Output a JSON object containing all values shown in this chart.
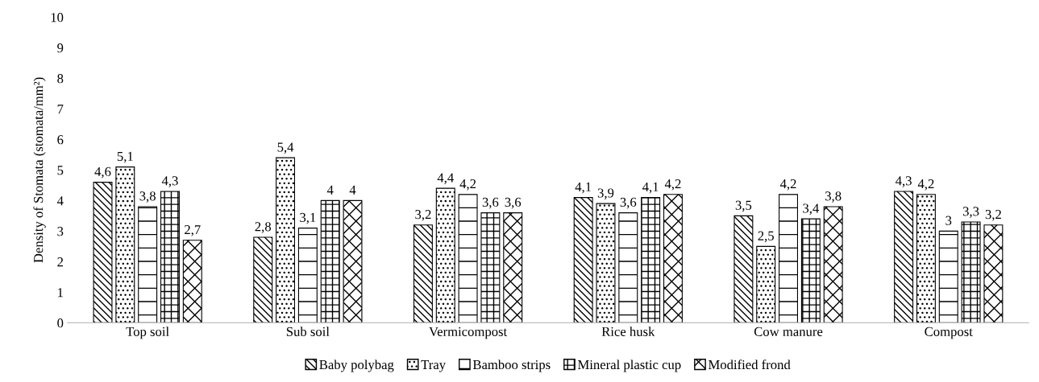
{
  "chart_data": {
    "type": "bar",
    "ylabel": "Density of Stomata (stomata/mm²)",
    "categories": [
      "Top soil",
      "Sub soil",
      "Vermicompost",
      "Rice husk",
      "Cow manure",
      "Compost"
    ],
    "series": [
      {
        "name": "Baby polybag",
        "color": "#000000",
        "values": [
          4.6,
          2.8,
          3.2,
          4.1,
          3.5,
          4.3
        ],
        "value_labels": [
          "4,6",
          "2,8",
          "3,2",
          "4,1",
          "3,5",
          "4,3"
        ]
      },
      {
        "name": "Tray",
        "color": "#000000",
        "values": [
          5.1,
          5.4,
          4.4,
          3.9,
          2.5,
          4.2
        ],
        "value_labels": [
          "5,1",
          "5,4",
          "4,4",
          "3,9",
          "2,5",
          "4,2"
        ]
      },
      {
        "name": "Bamboo strips",
        "color": "#000000",
        "values": [
          3.8,
          3.1,
          4.2,
          3.6,
          4.2,
          3.0
        ],
        "value_labels": [
          "3,8",
          "3,1",
          "4,2",
          "3,6",
          "4,2",
          "3"
        ]
      },
      {
        "name": "Mineral plastic cup",
        "color": "#000000",
        "values": [
          4.3,
          4.0,
          3.6,
          4.1,
          3.4,
          3.3
        ],
        "value_labels": [
          "4,3",
          "4",
          "3,6",
          "4,1",
          "3,4",
          "3,3"
        ]
      },
      {
        "name": "Modified frond",
        "color": "#000000",
        "values": [
          2.7,
          4.0,
          3.6,
          4.2,
          3.8,
          3.2
        ],
        "value_labels": [
          "2,7",
          "4",
          "3,6",
          "4,2",
          "3,8",
          "3,2"
        ]
      }
    ],
    "ylim": [
      0,
      10
    ],
    "yticks": [
      0,
      1,
      2,
      3,
      4,
      5,
      6,
      7,
      8,
      9,
      10
    ],
    "grid": false,
    "legend": "bottom"
  }
}
